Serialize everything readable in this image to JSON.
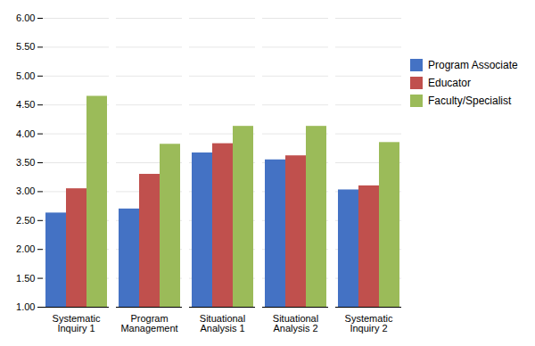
{
  "chart_data": {
    "type": "bar",
    "categories": [
      "Systematic\nInquiry 1",
      "Program\nManagement",
      "Situational\nAnalysis 1",
      "Situational\nAnalysis 2",
      "Systematic\nInquiry 2"
    ],
    "series": [
      {
        "name": "Program Associate",
        "color": "#4472C4",
        "values": [
          2.63,
          2.7,
          3.67,
          3.55,
          3.03
        ]
      },
      {
        "name": "Educator",
        "color": "#C0504D",
        "values": [
          3.05,
          3.3,
          3.83,
          3.62,
          3.1
        ]
      },
      {
        "name": "Faculty/Specialist",
        "color": "#9BBB59",
        "values": [
          4.65,
          3.82,
          4.13,
          4.13,
          3.85
        ]
      }
    ],
    "ylim": [
      1.0,
      6.0
    ],
    "yticks": [
      {
        "value": 1.0,
        "label": "1.00"
      },
      {
        "value": 1.5,
        "label": "1.50"
      },
      {
        "value": 2.0,
        "label": "2.00"
      },
      {
        "value": 2.5,
        "label": "2.50"
      },
      {
        "value": 3.0,
        "label": "3.00"
      },
      {
        "value": 3.5,
        "label": "3.50"
      },
      {
        "value": 4.0,
        "label": "4.00"
      },
      {
        "value": 4.5,
        "label": "4.50"
      },
      {
        "value": 5.0,
        "label": "5.00"
      },
      {
        "value": 5.5,
        "label": "5.50"
      },
      {
        "value": 6.0,
        "label": "6.00"
      }
    ],
    "grid": true,
    "legend": "right"
  }
}
